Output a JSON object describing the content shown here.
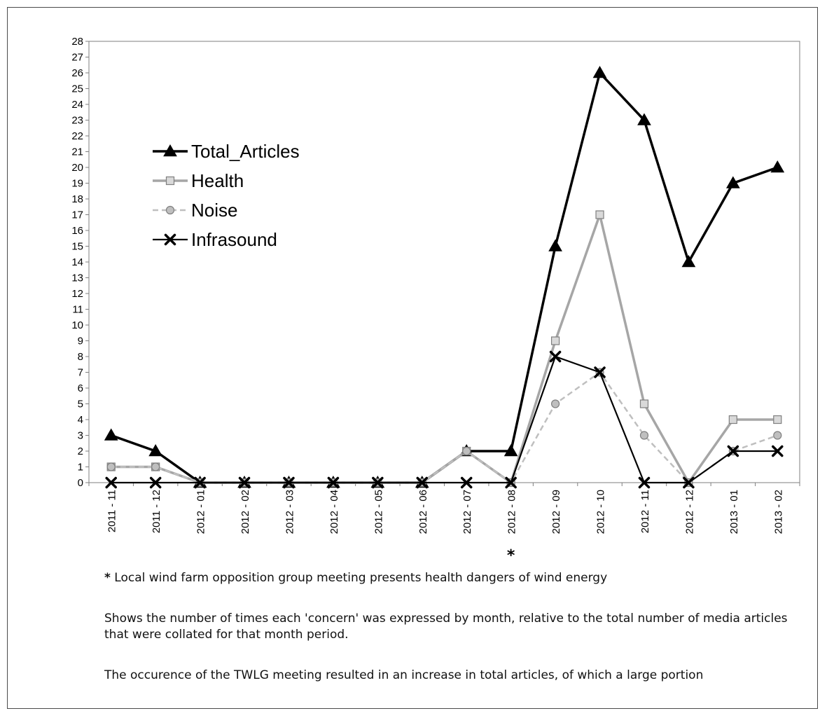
{
  "chart_data": {
    "type": "line",
    "title": "",
    "xlabel": "",
    "ylabel": "",
    "categories": [
      "2011 - 11",
      "2011 - 12",
      "2012 - 01",
      "2012 - 02",
      "2012 - 03",
      "2012 - 04",
      "2012 - 05",
      "2012 - 06",
      "2012 - 07",
      "*2012 - 08",
      "2012 - 09",
      "2012 - 10",
      "2012 - 11",
      "2012 - 12",
      "2013 - 01",
      "2013 - 02"
    ],
    "ylim": [
      0,
      28
    ],
    "yticks": [
      0,
      1,
      2,
      3,
      4,
      5,
      6,
      7,
      8,
      9,
      10,
      11,
      12,
      13,
      14,
      15,
      16,
      17,
      18,
      19,
      20,
      21,
      22,
      23,
      24,
      25,
      26,
      27,
      28
    ],
    "grid": false,
    "legend_position": "upper-left",
    "series": [
      {
        "name": "Total_Articles",
        "values": [
          3,
          2,
          0,
          0,
          0,
          0,
          0,
          0,
          2,
          2,
          15,
          26,
          23,
          14,
          19,
          20
        ],
        "color": "#000000",
        "marker": "triangle",
        "dash": "solid"
      },
      {
        "name": "Health",
        "values": [
          1,
          1,
          0,
          0,
          0,
          0,
          0,
          0,
          2,
          0,
          9,
          17,
          5,
          0,
          4,
          4
        ],
        "color": "#a6a6a6",
        "marker": "square",
        "dash": "solid"
      },
      {
        "name": "Noise",
        "values": [
          1,
          1,
          0,
          0,
          0,
          0,
          0,
          0,
          2,
          0,
          5,
          7,
          3,
          0,
          2,
          3
        ],
        "color": "#bfbfbf",
        "marker": "circle",
        "dash": "dashed"
      },
      {
        "name": "Infrasound",
        "values": [
          0,
          0,
          0,
          0,
          0,
          0,
          0,
          0,
          0,
          0,
          8,
          7,
          0,
          0,
          2,
          2
        ],
        "color": "#000000",
        "marker": "x",
        "dash": "solid"
      }
    ]
  },
  "notes": {
    "star": "*",
    "note1": "Local wind farm opposition group meeting presents health dangers of wind energy",
    "note2": "Shows the number of times each 'concern' was expressed by month, relative to the total number of media articles that were collated for that month period.",
    "note3": "The occurence of the TWLG meeting resulted in an increase in total articles, of which a large portion"
  }
}
